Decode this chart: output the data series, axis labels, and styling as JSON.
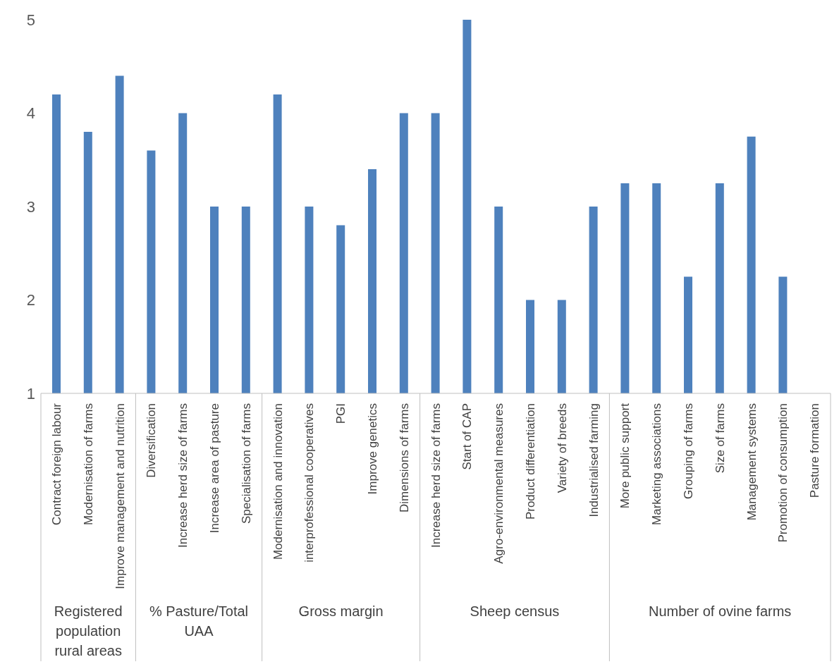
{
  "chart_data": {
    "type": "bar",
    "categories": [
      "Contract foreign labour",
      "Modernisation of farms",
      "Improve management and nutrition",
      "Diversification",
      "Increase herd size of farms",
      "Increase area of pasture",
      "Specialisation of farms",
      "Modernisation and innovation",
      "interprofessional cooperatives",
      "PGI",
      "Improve genetics",
      "Dimensions of farms",
      "Increase herd size of farms",
      "Start of CAP",
      "Agro-environmental measures",
      "Product differentiation",
      "Variety of breeds",
      "Industrialised farming",
      "More public support",
      "Marketing associations",
      "Grouping of farms",
      "Size of farms",
      "Management systems",
      "Promotion of consumption",
      "Pasture formation"
    ],
    "values": [
      4.2,
      3.8,
      4.4,
      3.6,
      4.0,
      3.0,
      3.0,
      4.2,
      3.0,
      2.8,
      3.4,
      4.0,
      4.0,
      5.0,
      3.0,
      2.0,
      2.0,
      3.0,
      3.25,
      3.25,
      2.25,
      3.25,
      3.75,
      2.25,
      null
    ],
    "color": "#4e81bd",
    "ylim": [
      1,
      5
    ],
    "yticks": [
      1,
      2,
      3,
      4,
      5
    ],
    "annotations": [
      "Registered population rural areas",
      "% Pasture/Total UAA",
      "Gross margin",
      "Sheep census",
      "Number of ovine farms"
    ]
  }
}
